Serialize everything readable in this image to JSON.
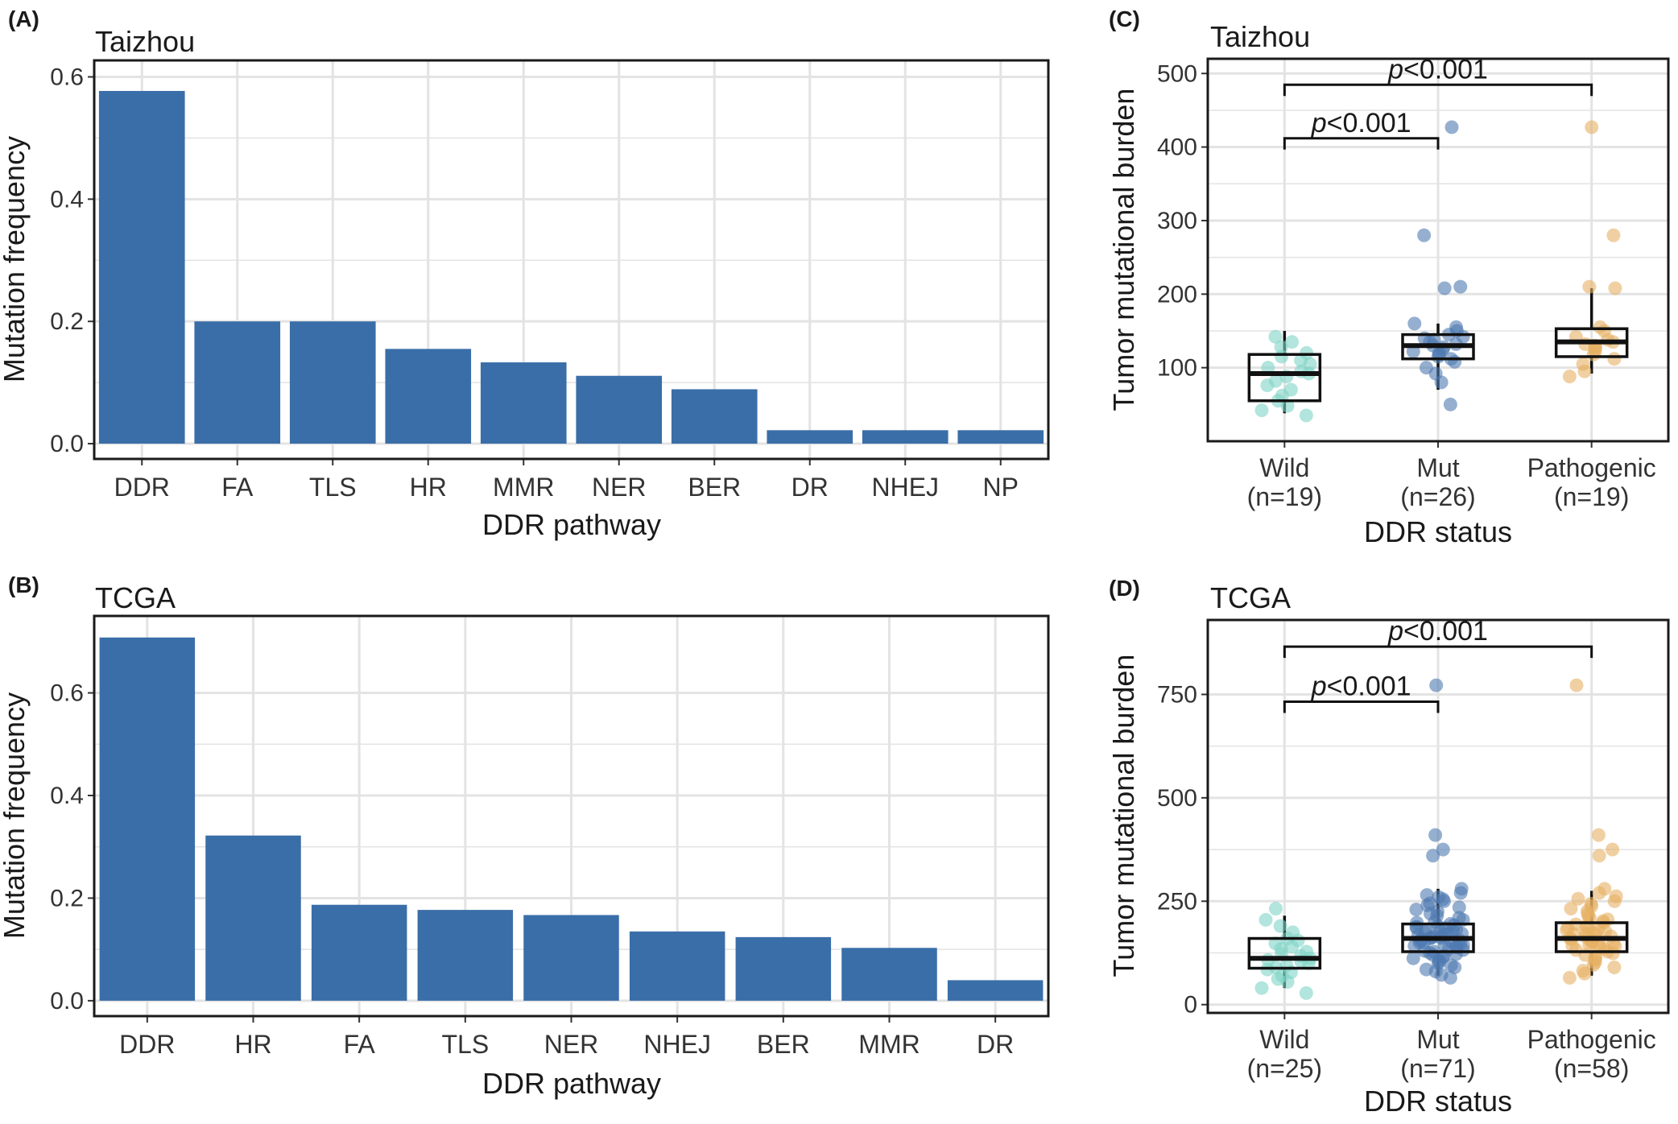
{
  "colors": {
    "bar": "#3a6ea8",
    "wild": "#7fd3c7",
    "mut": "#4f79b0",
    "pathogenic": "#e6b164",
    "grid": "#e3e3e3",
    "frame": "#1a1a1a"
  },
  "panels": {
    "A": {
      "letter": "(A)"
    },
    "B": {
      "letter": "(B)"
    },
    "C": {
      "letter": "(C)"
    },
    "D": {
      "letter": "(D)"
    }
  },
  "chart_data": [
    {
      "panel": "A",
      "type": "bar",
      "title": "Taizhou",
      "xlabel": "DDR pathway",
      "ylabel": "Mutation frequency",
      "categories": [
        "DDR",
        "FA",
        "TLS",
        "HR",
        "MMR",
        "NER",
        "BER",
        "DR",
        "NHEJ",
        "NP"
      ],
      "values": [
        0.577,
        0.2,
        0.2,
        0.155,
        0.133,
        0.111,
        0.089,
        0.022,
        0.022,
        0.022
      ],
      "ylim": [
        -0.025,
        0.627
      ],
      "yticks": [
        0.0,
        0.2,
        0.4,
        0.6
      ],
      "ytick_labels": [
        "0.0",
        "0.2",
        "0.4",
        "0.6"
      ],
      "grid": true
    },
    {
      "panel": "B",
      "type": "bar",
      "title": "TCGA",
      "xlabel": "DDR pathway",
      "ylabel": "Mutation frequency",
      "categories": [
        "DDR",
        "HR",
        "FA",
        "TLS",
        "NER",
        "NHEJ",
        "BER",
        "MMR",
        "DR"
      ],
      "values": [
        0.708,
        0.322,
        0.187,
        0.177,
        0.167,
        0.135,
        0.124,
        0.103,
        0.04
      ],
      "ylim": [
        -0.03,
        0.75
      ],
      "yticks": [
        0.0,
        0.2,
        0.4,
        0.6
      ],
      "ytick_labels": [
        "0.0",
        "0.2",
        "0.4",
        "0.6"
      ],
      "grid": true
    },
    {
      "panel": "C",
      "type": "box",
      "title": "Taizhou",
      "xlabel": "DDR status",
      "ylabel": "Tumor mutational burden",
      "ylim": [
        0,
        520
      ],
      "yticks": [
        100,
        200,
        300,
        400,
        500
      ],
      "ytick_labels": [
        "100",
        "200",
        "300",
        "400",
        "500"
      ],
      "groups": [
        {
          "name": "Wild",
          "n_label": "(n=19)",
          "color_key": "wild",
          "box": {
            "min": 38,
            "q1": 55,
            "median": 92,
            "q3": 118,
            "max": 150
          },
          "points": [
            35,
            42,
            48,
            55,
            62,
            70,
            76,
            82,
            88,
            92,
            95,
            100,
            105,
            110,
            115,
            120,
            128,
            135,
            142
          ]
        },
        {
          "name": "Mut",
          "n_label": "(n=26)",
          "color_key": "mut",
          "box": {
            "min": 70,
            "q1": 112,
            "median": 130,
            "q3": 145,
            "max": 160
          },
          "points": [
            50,
            80,
            92,
            100,
            108,
            112,
            115,
            118,
            120,
            122,
            125,
            128,
            130,
            132,
            135,
            138,
            140,
            142,
            145,
            150,
            155,
            160,
            208,
            210,
            280,
            427
          ]
        },
        {
          "name": "Pathogenic",
          "n_label": "(n=19)",
          "color_key": "pathogenic",
          "box": {
            "min": 92,
            "q1": 115,
            "median": 135,
            "q3": 153,
            "max": 208
          },
          "points": [
            88,
            95,
            105,
            112,
            118,
            122,
            125,
            128,
            130,
            132,
            135,
            138,
            142,
            150,
            155,
            208,
            210,
            280,
            427
          ]
        }
      ],
      "comparisons": [
        {
          "between": [
            "Wild",
            "Mut"
          ],
          "label": "p<0.001"
        },
        {
          "between": [
            "Wild",
            "Pathogenic"
          ],
          "label": "p<0.001"
        }
      ],
      "grid": true
    },
    {
      "panel": "D",
      "type": "box",
      "title": "TCGA",
      "xlabel": "DDR status",
      "ylabel": "Tumor mutational burden",
      "ylim": [
        -20,
        930
      ],
      "yticks": [
        0,
        250,
        500,
        750
      ],
      "ytick_labels": [
        "0",
        "250",
        "500",
        "750"
      ],
      "groups": [
        {
          "name": "Wild",
          "n_label": "(n=25)",
          "color_key": "wild",
          "box": {
            "min": 40,
            "q1": 88,
            "median": 112,
            "q3": 160,
            "max": 215
          },
          "points": [
            28,
            40,
            55,
            62,
            70,
            78,
            85,
            90,
            95,
            100,
            105,
            108,
            112,
            118,
            122,
            128,
            135,
            140,
            148,
            155,
            160,
            175,
            190,
            205,
            232
          ]
        },
        {
          "name": "Mut",
          "n_label": "(n=71)",
          "color_key": "mut",
          "box": {
            "min": 70,
            "q1": 128,
            "median": 160,
            "q3": 195,
            "max": 280
          },
          "points": [
            65,
            72,
            80,
            85,
            90,
            95,
            100,
            104,
            108,
            112,
            115,
            118,
            120,
            122,
            125,
            128,
            130,
            132,
            135,
            138,
            140,
            142,
            145,
            148,
            150,
            152,
            155,
            156,
            158,
            160,
            161,
            162,
            164,
            165,
            168,
            170,
            172,
            175,
            178,
            180,
            182,
            185,
            188,
            190,
            192,
            195,
            198,
            200,
            205,
            210,
            215,
            220,
            225,
            230,
            235,
            240,
            245,
            250,
            255,
            260,
            265,
            270,
            280,
            150,
            170,
            186,
            144,
            176,
            360,
            375,
            410
          ]
        },
        {
          "name": "Pathogenic",
          "n_label": "(n=58)",
          "color_key": "pathogenic",
          "box": {
            "min": 70,
            "q1": 128,
            "median": 160,
            "q3": 198,
            "max": 275
          },
          "points": [
            65,
            75,
            82,
            90,
            96,
            102,
            108,
            112,
            116,
            120,
            124,
            128,
            132,
            135,
            138,
            141,
            144,
            147,
            150,
            153,
            156,
            158,
            160,
            162,
            165,
            168,
            171,
            174,
            177,
            180,
            183,
            186,
            190,
            194,
            198,
            202,
            206,
            210,
            215,
            220,
            226,
            232,
            238,
            244,
            250,
            256,
            262,
            270,
            280,
            148,
            168,
            188,
            142,
            172,
            360,
            375,
            410,
            772
          ]
        }
      ],
      "comparisons": [
        {
          "between": [
            "Wild",
            "Mut"
          ],
          "label": "p<0.001"
        },
        {
          "between": [
            "Wild",
            "Pathogenic"
          ],
          "label": "p<0.001"
        }
      ],
      "extra_points": {
        "Mut": [
          772
        ]
      },
      "grid": true
    }
  ]
}
